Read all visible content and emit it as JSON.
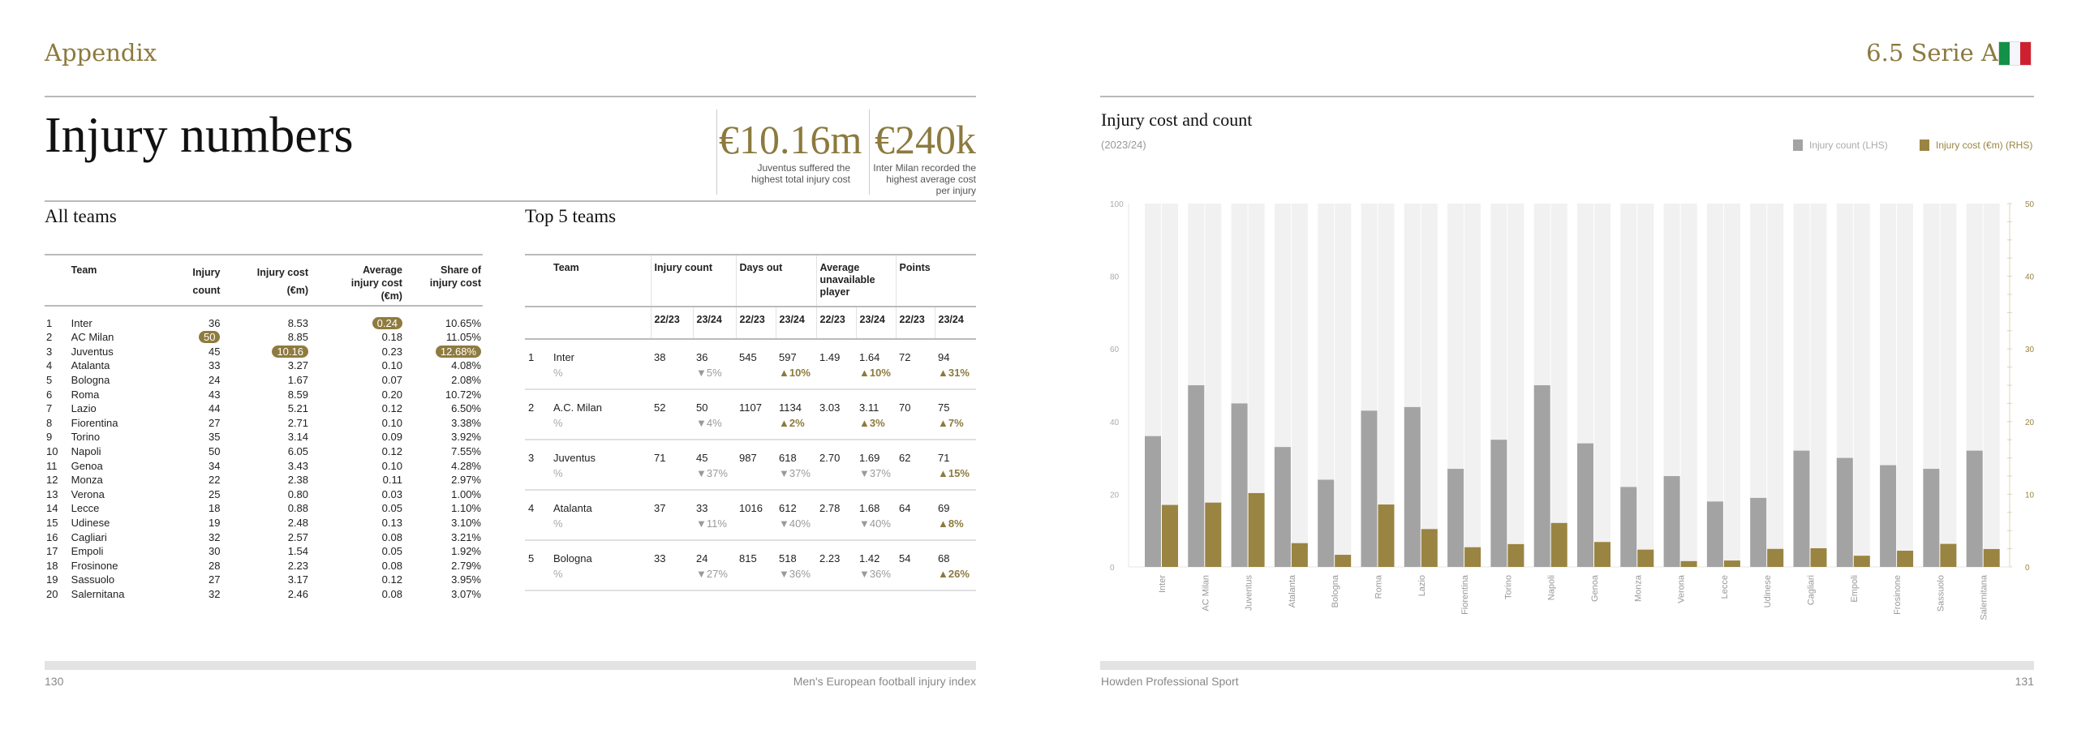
{
  "left_page": {
    "section": "Appendix",
    "title": "Injury numbers",
    "stats": [
      {
        "value": "€10.16m",
        "caption": [
          "Juventus suffered the",
          "highest total injury cost"
        ]
      },
      {
        "value": "€240k",
        "caption": [
          "Inter Milan recorded the",
          "highest average cost",
          "per injury"
        ]
      }
    ],
    "all_teams": {
      "heading": "All teams",
      "columns": [
        "",
        "Team",
        "Injury count",
        "Injury cost (€m)",
        "Average injury cost (€m)",
        "Share of injury cost"
      ],
      "col_lines": [
        [
          "Team"
        ],
        [
          "Injury",
          "count"
        ],
        [
          "Injury cost",
          "(€m)"
        ],
        [
          "Average",
          "injury cost",
          "(€m)"
        ],
        [
          "Share of",
          "injury cost"
        ]
      ],
      "rows": [
        [
          "1",
          "Inter",
          "36",
          "8.53",
          "0.24",
          "10.65%"
        ],
        [
          "2",
          "AC Milan",
          "50",
          "8.85",
          "0.18",
          "11.05%"
        ],
        [
          "3",
          "Juventus",
          "45",
          "10.16",
          "0.23",
          "12.68%"
        ],
        [
          "4",
          "Atalanta",
          "33",
          "3.27",
          "0.10",
          "4.08%"
        ],
        [
          "5",
          "Bologna",
          "24",
          "1.67",
          "0.07",
          "2.08%"
        ],
        [
          "6",
          "Roma",
          "43",
          "8.59",
          "0.20",
          "10.72%"
        ],
        [
          "7",
          "Lazio",
          "44",
          "5.21",
          "0.12",
          "6.50%"
        ],
        [
          "8",
          "Fiorentina",
          "27",
          "2.71",
          "0.10",
          "3.38%"
        ],
        [
          "9",
          "Torino",
          "35",
          "3.14",
          "0.09",
          "3.92%"
        ],
        [
          "10",
          "Napoli",
          "50",
          "6.05",
          "0.12",
          "7.55%"
        ],
        [
          "11",
          "Genoa",
          "34",
          "3.43",
          "0.10",
          "4.28%"
        ],
        [
          "12",
          "Monza",
          "22",
          "2.38",
          "0.11",
          "2.97%"
        ],
        [
          "13",
          "Verona",
          "25",
          "0.80",
          "0.03",
          "1.00%"
        ],
        [
          "14",
          "Lecce",
          "18",
          "0.88",
          "0.05",
          "1.10%"
        ],
        [
          "15",
          "Udinese",
          "19",
          "2.48",
          "0.13",
          "3.10%"
        ],
        [
          "16",
          "Cagliari",
          "32",
          "2.57",
          "0.08",
          "3.21%"
        ],
        [
          "17",
          "Empoli",
          "30",
          "1.54",
          "0.05",
          "1.92%"
        ],
        [
          "18",
          "Frosinone",
          "28",
          "2.23",
          "0.08",
          "2.79%"
        ],
        [
          "19",
          "Sassuolo",
          "27",
          "3.17",
          "0.12",
          "3.95%"
        ],
        [
          "20",
          "Salernitana",
          "32",
          "2.46",
          "0.08",
          "3.07%"
        ]
      ],
      "highlights": [
        [
          1,
          2
        ],
        [
          2,
          3
        ],
        [
          0,
          4
        ],
        [
          2,
          5
        ]
      ]
    },
    "top5": {
      "heading": "Top 5 teams",
      "groups": [
        "Team",
        "Injury count",
        "Days out",
        "Average unavailable player",
        "Points"
      ],
      "years": [
        "22/23",
        "23/24"
      ],
      "pct_label": "%",
      "rows": [
        {
          "rank": "1",
          "team": "Inter",
          "values": [
            "38",
            "36",
            "545",
            "597",
            "1.49",
            "1.64",
            "72",
            "94"
          ],
          "pct": [
            "▼5%",
            "▲10%",
            "▲10%",
            "▲31%"
          ]
        },
        {
          "rank": "2",
          "team": "A.C. Milan",
          "values": [
            "52",
            "50",
            "1107",
            "1134",
            "3.03",
            "3.11",
            "70",
            "75"
          ],
          "pct": [
            "▼4%",
            "▲2%",
            "▲3%",
            "▲7%"
          ]
        },
        {
          "rank": "3",
          "team": "Juventus",
          "values": [
            "71",
            "45",
            "987",
            "618",
            "2.70",
            "1.69",
            "62",
            "71"
          ],
          "pct": [
            "▼37%",
            "▼37%",
            "▼37%",
            "▲15%"
          ]
        },
        {
          "rank": "4",
          "team": "Atalanta",
          "values": [
            "37",
            "33",
            "1016",
            "612",
            "2.78",
            "1.68",
            "64",
            "69"
          ],
          "pct": [
            "▼11%",
            "▼40%",
            "▼40%",
            "▲8%"
          ]
        },
        {
          "rank": "5",
          "team": "Bologna",
          "values": [
            "33",
            "24",
            "815",
            "518",
            "2.23",
            "1.42",
            "54",
            "68"
          ],
          "pct": [
            "▼27%",
            "▼36%",
            "▼36%",
            "▲26%"
          ]
        }
      ]
    },
    "footer": {
      "page": "130",
      "publication": "Men's European football injury index"
    }
  },
  "right_page": {
    "section": "6.5 Serie A",
    "flag": "italy-flag",
    "footer": {
      "publisher": "Howden Professional Sport",
      "page": "131"
    }
  },
  "colors": {
    "gold": "#9a8442",
    "grey_bar": "#a3a3a3",
    "track": "#f1f1f1"
  },
  "chart_data": {
    "type": "bar",
    "title": "Injury cost and count",
    "subtitle": "(2023/24)",
    "categories": [
      "Inter",
      "AC Milan",
      "Juventus",
      "Atalanta",
      "Bologna",
      "Roma",
      "Lazio",
      "Fiorentina",
      "Torino",
      "Napoli",
      "Genoa",
      "Monza",
      "Verona",
      "Lecce",
      "Udinese",
      "Cagliari",
      "Empoli",
      "Frosinone",
      "Sassuolo",
      "Salernitana"
    ],
    "series": [
      {
        "name": "Injury count (LHS)",
        "axis": "left",
        "values": [
          36,
          50,
          45,
          33,
          24,
          43,
          44,
          27,
          35,
          50,
          34,
          22,
          25,
          18,
          19,
          32,
          30,
          28,
          27,
          32
        ]
      },
      {
        "name": "Injury cost (€m) (RHS)",
        "axis": "right",
        "values": [
          8.53,
          8.85,
          10.16,
          3.27,
          1.67,
          8.59,
          5.21,
          2.71,
          3.14,
          6.05,
          3.43,
          2.38,
          0.8,
          0.88,
          2.48,
          2.57,
          1.54,
          2.23,
          3.17,
          2.46
        ]
      }
    ],
    "ylim_left": [
      0,
      100
    ],
    "yticks_left": [
      "0",
      "20",
      "40",
      "60",
      "80",
      "100"
    ],
    "ylim_right": [
      0,
      50
    ],
    "yticks_right": [
      "0",
      "10",
      "20",
      "30",
      "40",
      "50"
    ],
    "legend": "top-right"
  }
}
